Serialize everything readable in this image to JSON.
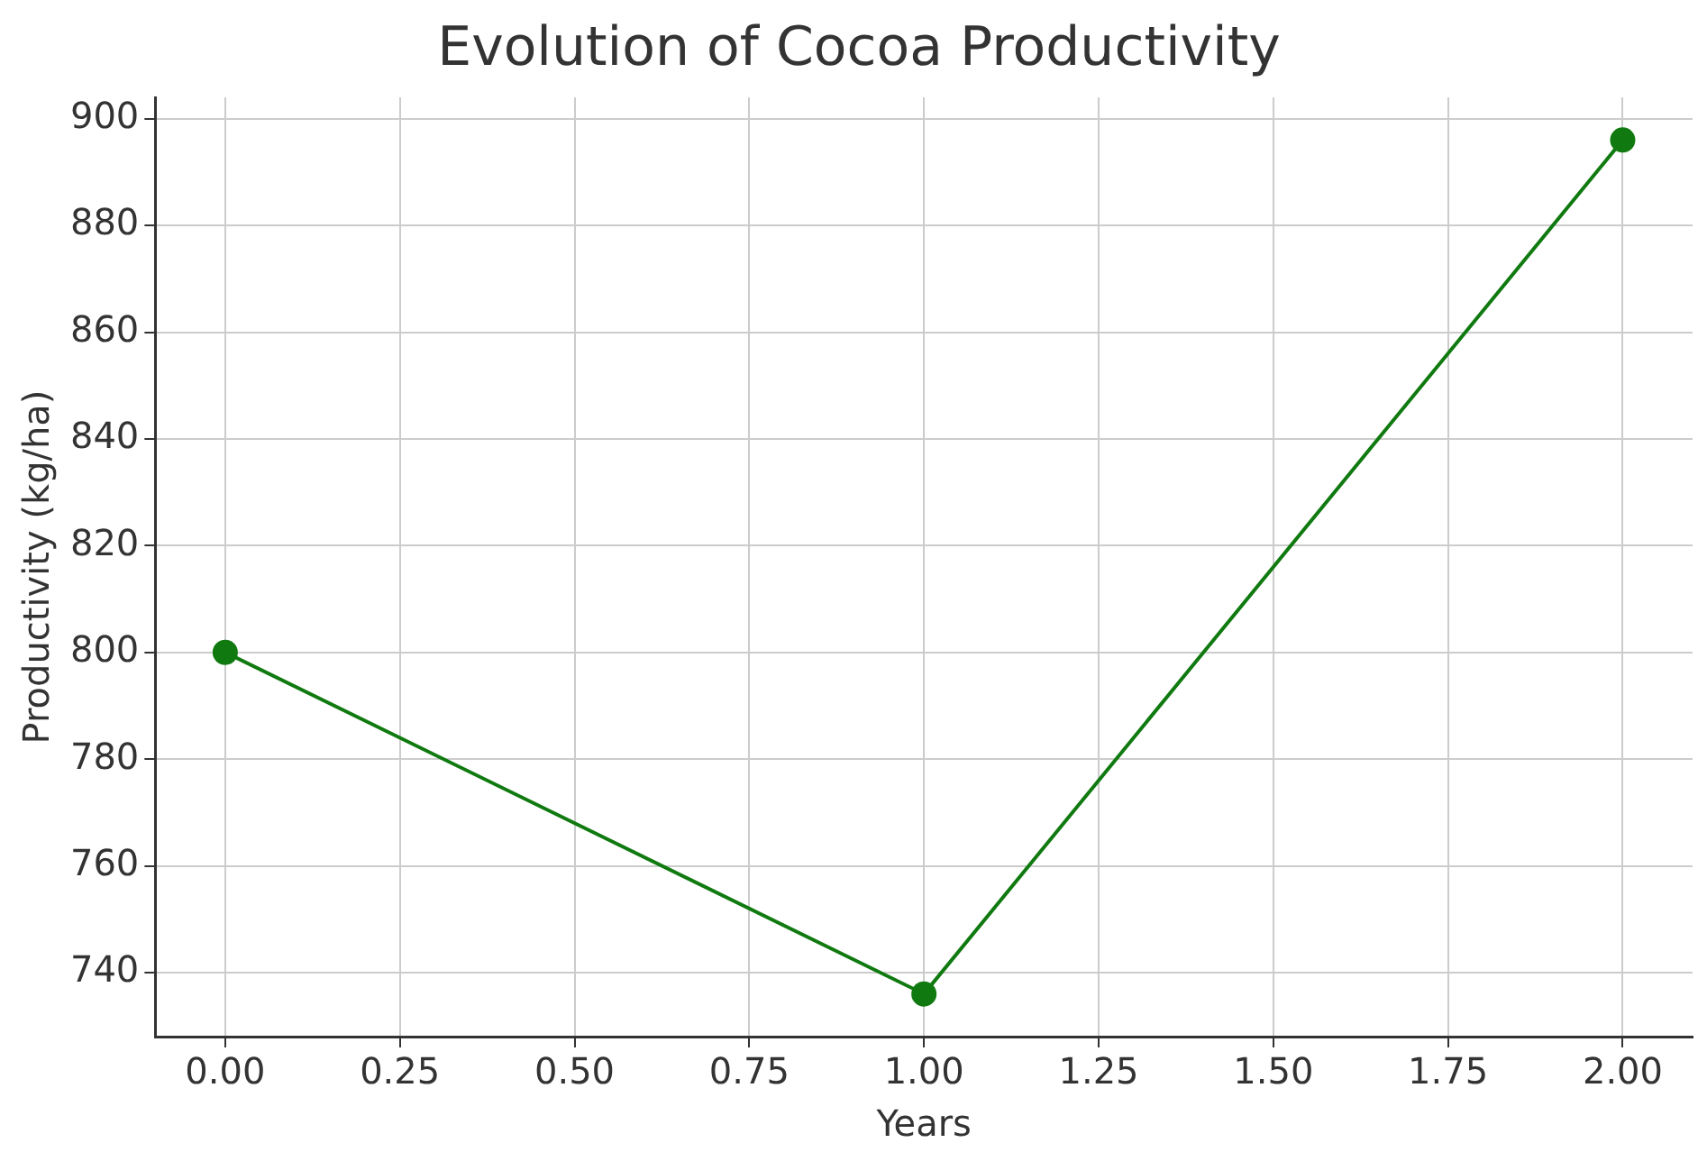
{
  "chart_data": {
    "type": "line",
    "title": "Evolution of Cocoa Productivity",
    "xlabel": "Years",
    "ylabel": "Productivity (kg/ha)",
    "x": [
      0,
      1,
      2
    ],
    "series": [
      {
        "color": "#107a10",
        "values": [
          800,
          736,
          896
        ]
      }
    ],
    "xlim": [
      -0.1,
      2.1
    ],
    "xticks": [
      {
        "value": 0,
        "label": "0.00"
      },
      {
        "value": 0.25,
        "label": "0.25"
      },
      {
        "value": 0.5,
        "label": "0.50"
      },
      {
        "value": 0.75,
        "label": "0.75"
      },
      {
        "value": 1,
        "label": "1.00"
      },
      {
        "value": 1.25,
        "label": "1.25"
      },
      {
        "value": 1.5,
        "label": "1.50"
      },
      {
        "value": 1.75,
        "label": "1.75"
      },
      {
        "value": 2,
        "label": "2.00"
      }
    ],
    "ylim": [
      728,
      904
    ],
    "yticks": [
      740,
      760,
      780,
      800,
      820,
      840,
      860,
      880,
      900
    ],
    "grid": true,
    "marker": "circle",
    "line_style": "solid",
    "legend": false
  }
}
